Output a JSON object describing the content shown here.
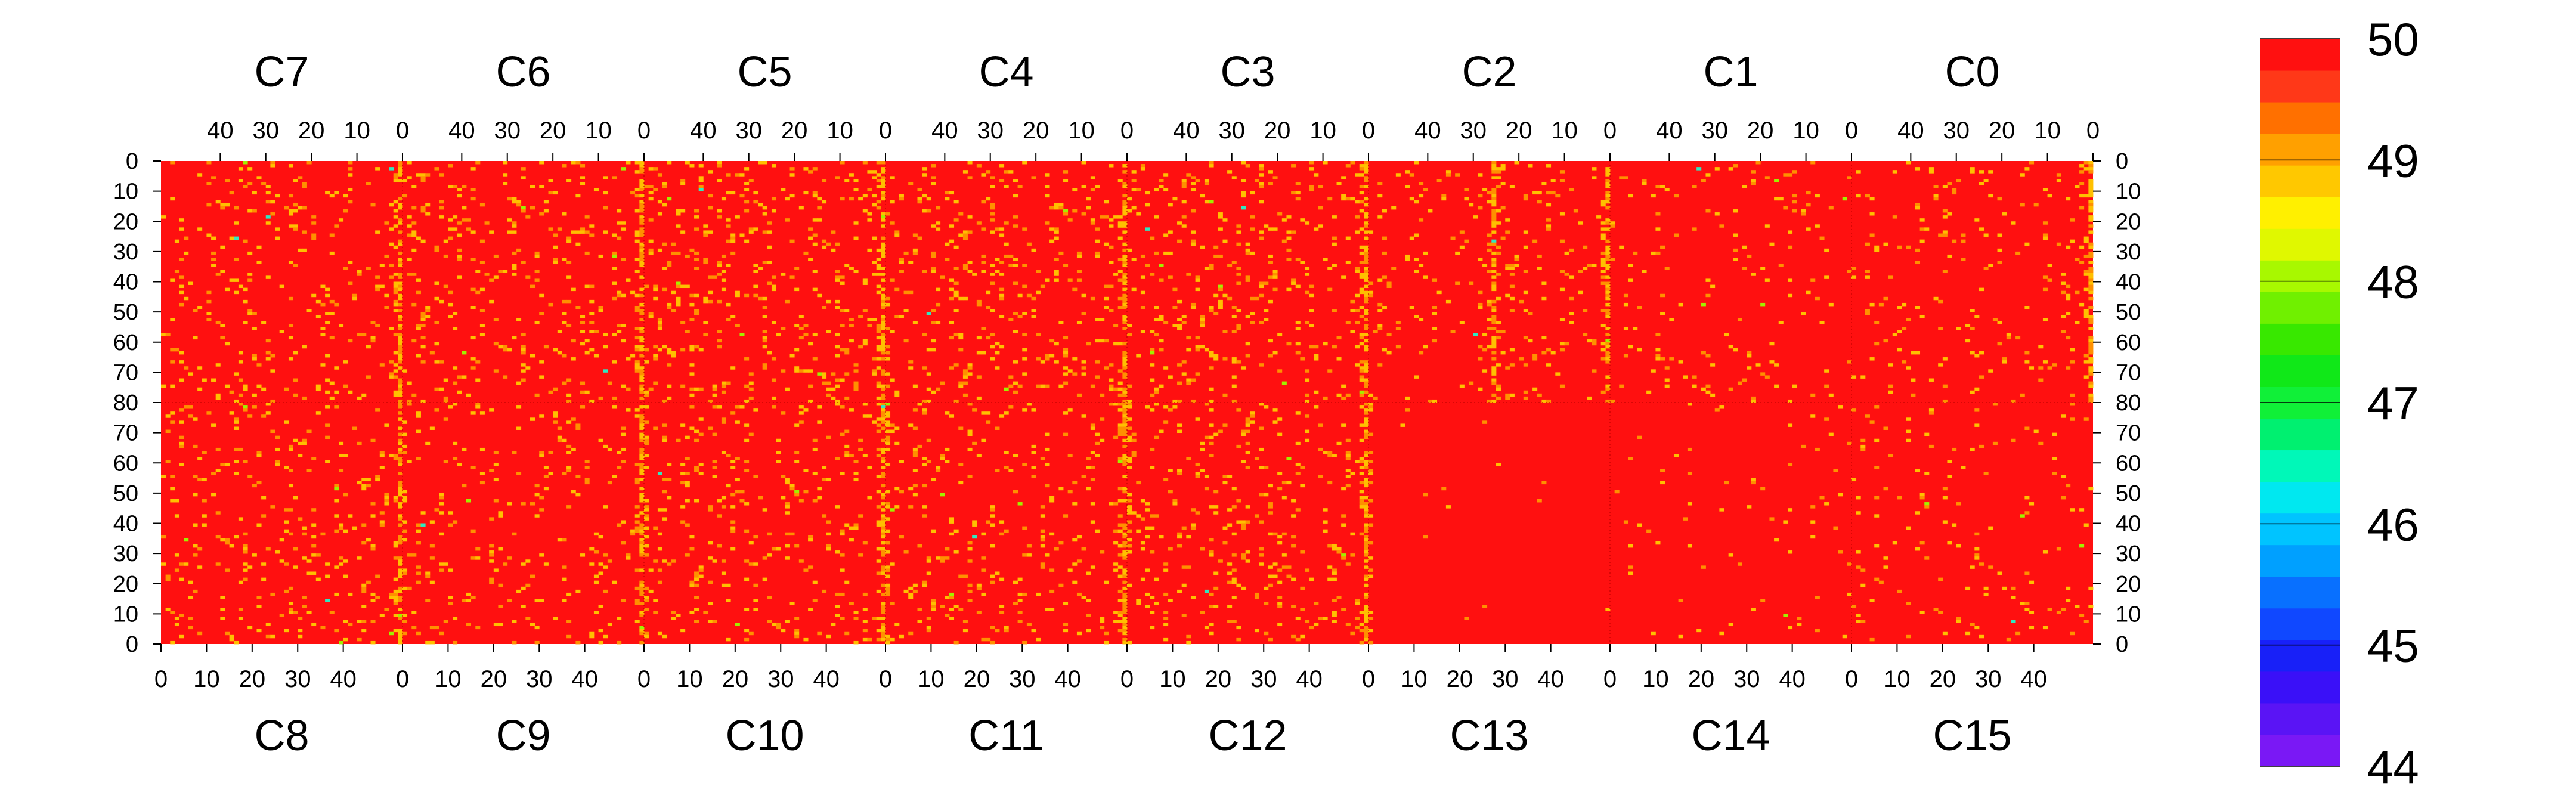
{
  "chart_data": {
    "type": "heatmap",
    "top_row": {
      "chambers": [
        "C7",
        "C6",
        "C5",
        "C4",
        "C3",
        "C2",
        "C1",
        "C0"
      ],
      "x_tick_labels": [
        "40",
        "30",
        "20",
        "10",
        "0"
      ],
      "x_direction": "decreasing",
      "y_tick_labels": [
        "0",
        "10",
        "20",
        "30",
        "40",
        "50",
        "60",
        "70",
        "80"
      ],
      "y_direction": "downward"
    },
    "bottom_row": {
      "chambers": [
        "C8",
        "C9",
        "C10",
        "C11",
        "C12",
        "C13",
        "C14",
        "C15"
      ],
      "x_tick_labels": [
        "0",
        "10",
        "20",
        "30",
        "40"
      ],
      "x_direction": "increasing",
      "y_tick_labels": [
        "80",
        "70",
        "60",
        "50",
        "40",
        "30",
        "20",
        "10",
        "0"
      ],
      "y_direction": "upward"
    },
    "x_range_per_chamber": [
      0,
      53
    ],
    "y_range_per_row": [
      0,
      80
    ],
    "colorbar": {
      "range": [
        44,
        50
      ],
      "tick_labels": [
        "50",
        "49",
        "48",
        "47",
        "46",
        "45",
        "44"
      ],
      "levels": 20,
      "colors": [
        "#7a18f5",
        "#5a14f5",
        "#3a10f8",
        "#1820f8",
        "#1048ff",
        "#0870ff",
        "#00a0ff",
        "#00c4ff",
        "#00e8f0",
        "#00f8b8",
        "#00f070",
        "#10f038",
        "#10e818",
        "#38e800",
        "#70f000",
        "#a8f800",
        "#e0f800",
        "#fff000",
        "#ffc800",
        "#ffa000",
        "#ff7000",
        "#ff3818",
        "#ff1010"
      ]
    },
    "background_value": 50,
    "heavy_columns_top": [
      "C7 x=0",
      "C6 x=0",
      "C5 x=0",
      "C4 x=0",
      "C3 x=0",
      "C2 x=0",
      "C2 x=25",
      "C0 x=0"
    ],
    "heavy_columns_bottom": [
      "C8 x=52",
      "C9 x=52",
      "C10 x=52",
      "C11 x=52",
      "C12 x=52"
    ],
    "quiet_region": "C13-C14 bottom, C2-C1 top: almost entirely 50",
    "cell_value_distribution": {
      "most_cells": 50,
      "sparse_cells": 49.5,
      "rare_cells": [
        49,
        48.5,
        47.5,
        46.5
      ]
    }
  }
}
